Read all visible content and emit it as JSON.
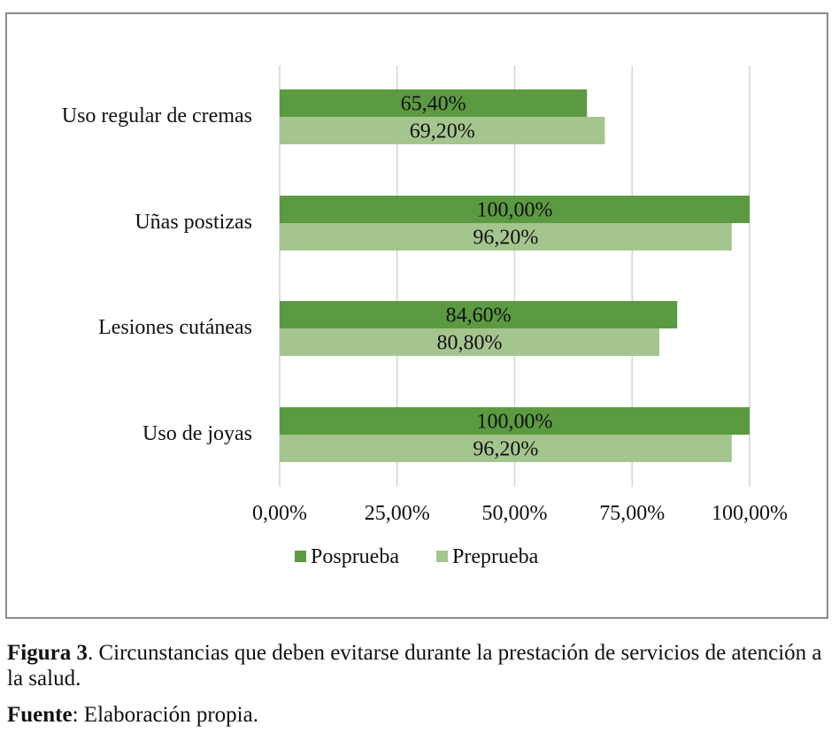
{
  "chart_data": {
    "type": "bar",
    "orientation": "horizontal",
    "categories": [
      "Uso regular de cremas",
      "Uñas postizas",
      "Lesiones cutáneas",
      "Uso de joyas"
    ],
    "series": [
      {
        "name": "Posprueba",
        "color": "#5c9a42",
        "values": [
          65.4,
          100.0,
          84.6,
          100.0
        ],
        "labels": [
          "65,40%",
          "100,00%",
          "84,60%",
          "100,00%"
        ]
      },
      {
        "name": "Preprueba",
        "color": "#a5c58f",
        "values": [
          69.2,
          96.2,
          80.8,
          96.2
        ],
        "labels": [
          "69,20%",
          "96,20%",
          "80,80%",
          "96,20%"
        ]
      }
    ],
    "xlim": [
      0,
      100
    ],
    "xticks": [
      0,
      25,
      50,
      75,
      100
    ],
    "xtick_labels": [
      "0,00%",
      "25,00%",
      "50,00%",
      "75,00%",
      "100,00%"
    ],
    "grid": true,
    "legend_position": "bottom",
    "title": "",
    "xlabel": "",
    "ylabel": ""
  },
  "caption": {
    "label": "Figura 3",
    "text": ". Circunstancias que deben evitarse durante la prestación de servicios de atención a la salud."
  },
  "source": {
    "label": "Fuente",
    "text": ": Elaboración propia."
  }
}
